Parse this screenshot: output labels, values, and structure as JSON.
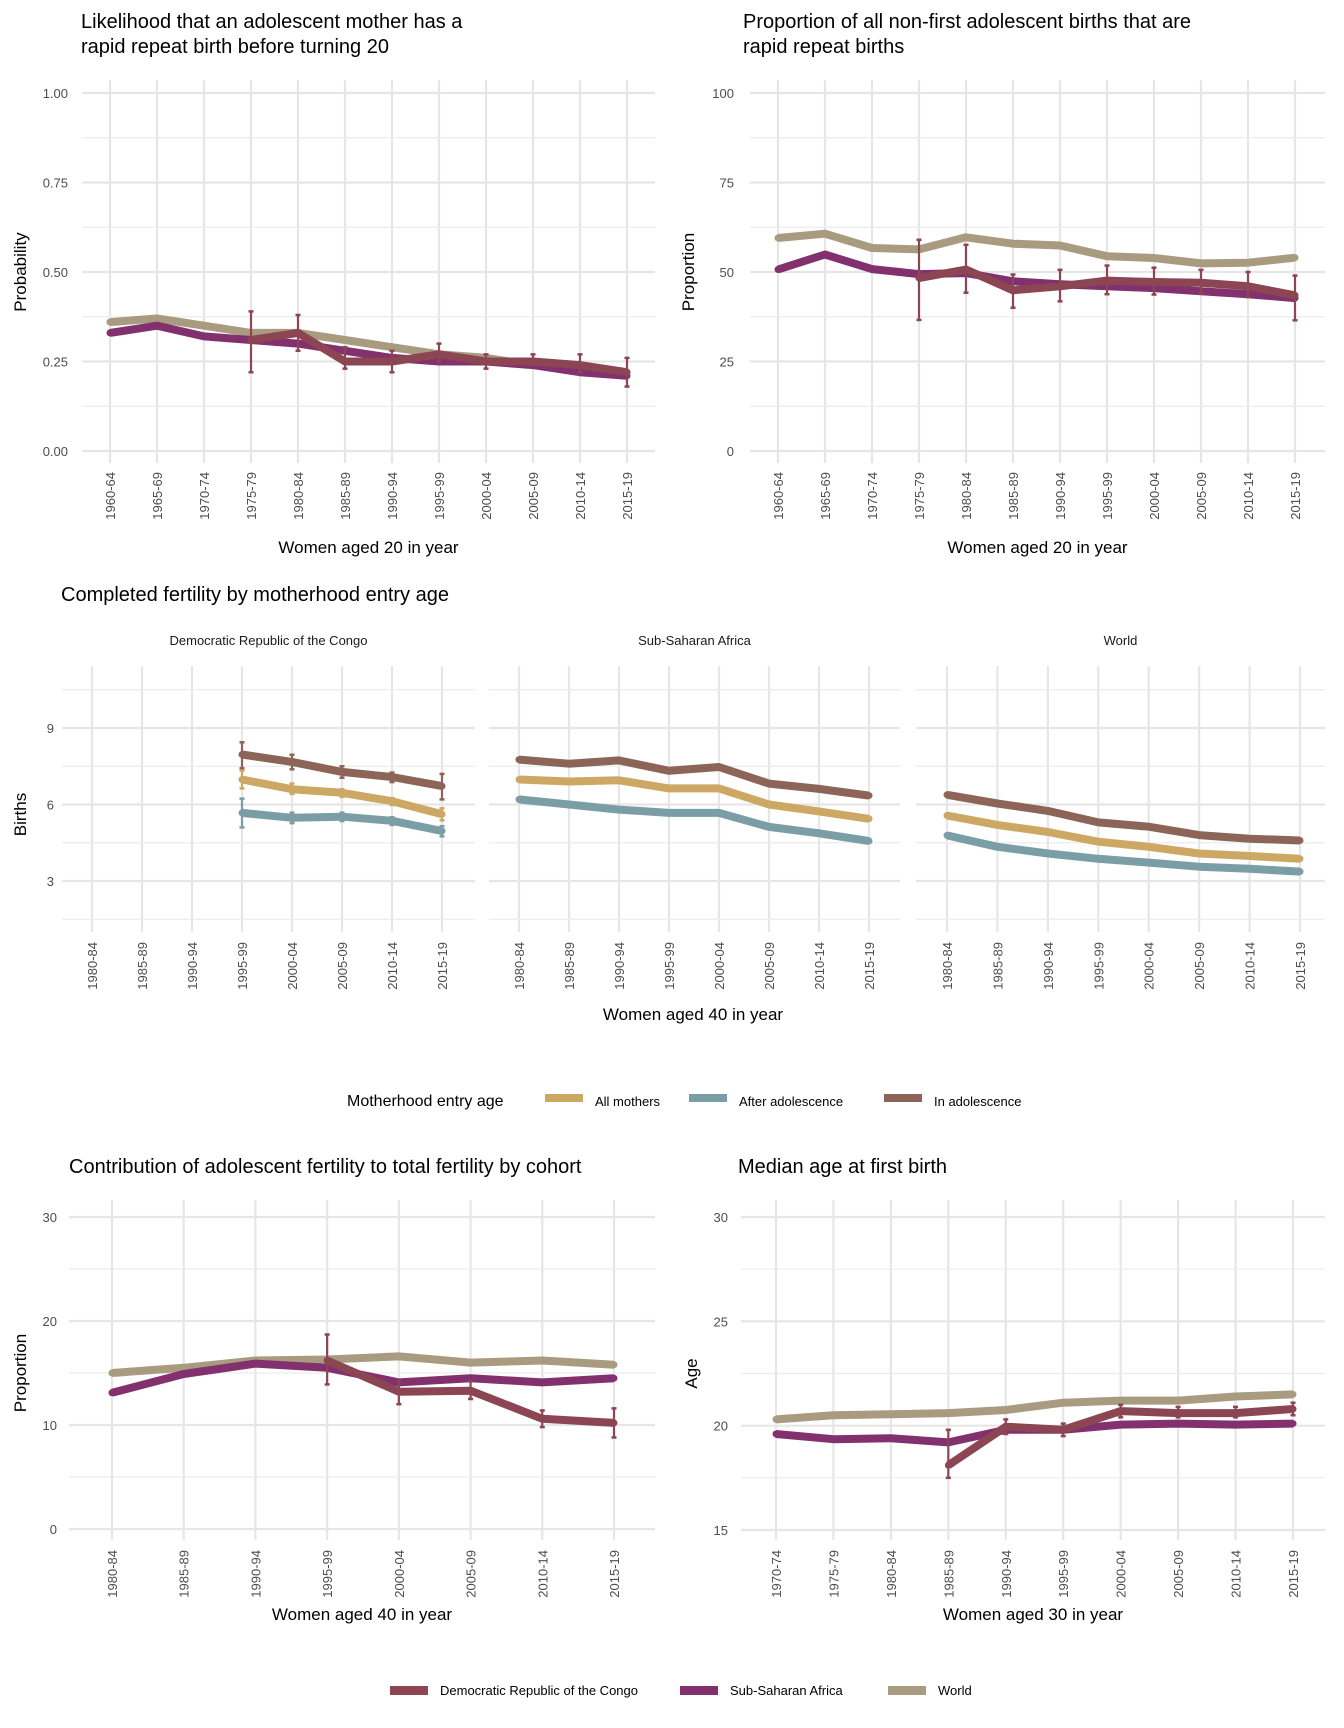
{
  "colors": {
    "drc": "#8b4553",
    "ssa": "#83306f",
    "world": "#a89b80",
    "all_mothers": "#cda864",
    "after_adolescence": "#7b9ea6",
    "in_adolescence": "#8c6558"
  },
  "chart_data": [
    {
      "id": "rapid-repeat-likelihood",
      "type": "line",
      "title": [
        "Likelihood that an adolescent mother has a",
        "rapid repeat birth before turning 20"
      ],
      "xlabel": "Women aged 20 in year",
      "ylabel": "Probability",
      "ylim": [
        0,
        1
      ],
      "yticks": [
        0,
        0.25,
        0.5,
        0.75,
        1
      ],
      "ytick_labels": [
        "0.00",
        "0.25",
        "0.50",
        "0.75",
        "1.00"
      ],
      "grid": true,
      "categories": [
        "1960-64",
        "1965-69",
        "1970-74",
        "1975-79",
        "1980-84",
        "1985-89",
        "1990-94",
        "1995-99",
        "2000-04",
        "2005-09",
        "2010-14",
        "2015-19"
      ],
      "series": [
        {
          "name": "World",
          "color_key": "world",
          "values": [
            0.36,
            0.37,
            0.35,
            0.33,
            0.33,
            0.31,
            0.29,
            0.27,
            0.26,
            0.24,
            0.23,
            0.22
          ]
        },
        {
          "name": "Sub-Saharan Africa",
          "color_key": "ssa",
          "values": [
            0.33,
            0.35,
            0.32,
            0.31,
            0.3,
            0.28,
            0.26,
            0.25,
            0.25,
            0.24,
            0.22,
            0.21
          ]
        },
        {
          "name": "Democratic Republic of the Congo",
          "color_key": "drc",
          "values": [
            null,
            null,
            null,
            0.31,
            0.33,
            0.25,
            0.25,
            0.27,
            0.25,
            0.25,
            0.24,
            0.22
          ],
          "lower": [
            null,
            null,
            null,
            0.22,
            0.28,
            0.23,
            0.22,
            0.25,
            0.23,
            0.24,
            0.22,
            0.18
          ],
          "upper": [
            null,
            null,
            null,
            0.39,
            0.38,
            0.29,
            0.28,
            0.3,
            0.27,
            0.27,
            0.27,
            0.26
          ]
        }
      ]
    },
    {
      "id": "rapid-repeat-proportion",
      "type": "line",
      "title": [
        "Proportion of all non-first adolescent births that are",
        "rapid repeat births"
      ],
      "xlabel": "Women aged 20 in year",
      "ylabel": "Proportion",
      "ylim": [
        0,
        100
      ],
      "yticks": [
        0,
        25,
        50,
        75,
        100
      ],
      "ytick_labels": [
        "0",
        "25",
        "50",
        "75",
        "100"
      ],
      "grid": true,
      "categories": [
        "1960-64",
        "1965-69",
        "1970-74",
        "1975-79",
        "1980-84",
        "1985-89",
        "1990-94",
        "1995-99",
        "2000-04",
        "2005-09",
        "2010-14",
        "2015-19"
      ],
      "series": [
        {
          "name": "World",
          "color_key": "world",
          "values": [
            59.5,
            60.7,
            56.7,
            56.3,
            59.7,
            57.9,
            57.4,
            54.4,
            53.9,
            52.4,
            52.6,
            54.0
          ]
        },
        {
          "name": "Sub-Saharan Africa",
          "color_key": "ssa",
          "values": [
            50.7,
            54.9,
            50.8,
            49.4,
            49.7,
            47.4,
            46.6,
            46.0,
            45.5,
            44.6,
            43.8,
            42.7
          ]
        },
        {
          "name": "Democratic Republic of the Congo",
          "color_key": "drc",
          "values": [
            null,
            null,
            null,
            48.3,
            50.7,
            44.9,
            46.0,
            47.6,
            47.2,
            47.0,
            46.0,
            43.5
          ],
          "lower": [
            null,
            null,
            null,
            36.6,
            44.2,
            40.0,
            41.8,
            43.8,
            43.7,
            44.0,
            43.0,
            36.5
          ],
          "upper": [
            null,
            null,
            null,
            59.0,
            57.6,
            49.3,
            50.6,
            51.8,
            51.2,
            50.6,
            50.0,
            49.0
          ]
        }
      ]
    },
    {
      "id": "completed-fertility",
      "type": "line",
      "title": [
        "Completed fertility by motherhood entry age"
      ],
      "xlabel": "Women aged 40 in year",
      "ylabel": "Births",
      "ylim": [
        0.9,
        11.1
      ],
      "yticks": [
        3,
        6,
        9
      ],
      "ytick_labels": [
        "3",
        "6",
        "9"
      ],
      "minor_yticks": [
        1.5,
        4.5,
        7.5,
        10.5
      ],
      "grid": true,
      "categories": [
        "1980-84",
        "1985-89",
        "1990-94",
        "1995-99",
        "2000-04",
        "2005-09",
        "2010-14",
        "2015-19"
      ],
      "legend": {
        "title": "Motherhood entry age",
        "position": "bottom",
        "items": [
          {
            "label": "All mothers",
            "color_key": "all_mothers"
          },
          {
            "label": "After adolescence",
            "color_key": "after_adolescence"
          },
          {
            "label": "In adolescence",
            "color_key": "in_adolescence"
          }
        ]
      },
      "facets": [
        {
          "name": "Democratic Republic of the Congo",
          "series": [
            {
              "name": "In adolescence",
              "color_key": "in_adolescence",
              "values": [
                null,
                null,
                null,
                7.96,
                7.67,
                7.28,
                7.08,
                6.72
              ],
              "lower": [
                null,
                null,
                null,
                7.42,
                7.38,
                7.05,
                6.88,
                6.2
              ],
              "upper": [
                null,
                null,
                null,
                8.44,
                7.95,
                7.5,
                7.25,
                7.2
              ]
            },
            {
              "name": "All mothers",
              "color_key": "all_mothers",
              "values": [
                null,
                null,
                null,
                6.98,
                6.6,
                6.46,
                6.13,
                5.62
              ],
              "lower": [
                null,
                null,
                null,
                6.63,
                6.42,
                6.3,
                5.98,
                5.38
              ],
              "upper": [
                null,
                null,
                null,
                7.33,
                6.82,
                6.6,
                6.25,
                5.85
              ]
            },
            {
              "name": "After adolescence",
              "color_key": "after_adolescence",
              "values": [
                null,
                null,
                null,
                5.67,
                5.48,
                5.52,
                5.36,
                4.96
              ],
              "lower": [
                null,
                null,
                null,
                5.1,
                5.27,
                5.35,
                5.2,
                4.75
              ],
              "upper": [
                null,
                null,
                null,
                6.23,
                5.68,
                5.68,
                5.5,
                5.15
              ]
            }
          ]
        },
        {
          "name": "Sub-Saharan Africa",
          "series": [
            {
              "name": "In adolescence",
              "color_key": "in_adolescence",
              "values": [
                7.76,
                7.6,
                7.73,
                7.32,
                7.47,
                6.82,
                6.61,
                6.35
              ]
            },
            {
              "name": "All mothers",
              "color_key": "all_mothers",
              "values": [
                6.98,
                6.9,
                6.95,
                6.63,
                6.63,
                6.0,
                5.73,
                5.44
              ]
            },
            {
              "name": "After adolescence",
              "color_key": "after_adolescence",
              "values": [
                6.2,
                6.0,
                5.8,
                5.67,
                5.67,
                5.12,
                4.87,
                4.57
              ]
            }
          ]
        },
        {
          "name": "World",
          "series": [
            {
              "name": "In adolescence",
              "color_key": "in_adolescence",
              "values": [
                6.38,
                6.04,
                5.75,
                5.3,
                5.13,
                4.8,
                4.66,
                4.59
              ]
            },
            {
              "name": "All mothers",
              "color_key": "all_mothers",
              "values": [
                5.57,
                5.2,
                4.92,
                4.54,
                4.34,
                4.08,
                3.98,
                3.87
              ]
            },
            {
              "name": "After adolescence",
              "color_key": "after_adolescence",
              "values": [
                4.79,
                4.34,
                4.08,
                3.87,
                3.72,
                3.56,
                3.48,
                3.37
              ]
            }
          ]
        }
      ]
    },
    {
      "id": "adolescent-contribution",
      "type": "line",
      "title": [
        "Contribution of adolescent fertility to total fertility by cohort"
      ],
      "xlabel": "Women aged 40 in year",
      "ylabel": "Proportion",
      "ylim": [
        0,
        30
      ],
      "yticks": [
        0,
        10,
        20,
        30
      ],
      "ytick_labels": [
        "0",
        "10",
        "20",
        "30"
      ],
      "minor_yticks": [
        5,
        15,
        25
      ],
      "grid": true,
      "categories": [
        "1980-84",
        "1985-89",
        "1990-94",
        "1995-99",
        "2000-04",
        "2005-09",
        "2010-14",
        "2015-19"
      ],
      "series": [
        {
          "name": "World",
          "color_key": "world",
          "values": [
            15.0,
            15.5,
            16.2,
            16.3,
            16.6,
            16.0,
            16.2,
            15.8
          ]
        },
        {
          "name": "Sub-Saharan Africa",
          "color_key": "ssa",
          "values": [
            13.1,
            14.9,
            15.9,
            15.5,
            14.1,
            14.5,
            14.1,
            14.5
          ]
        },
        {
          "name": "Democratic Republic of the Congo",
          "color_key": "drc",
          "values": [
            null,
            null,
            null,
            16.2,
            13.2,
            13.3,
            10.6,
            10.2
          ],
          "lower": [
            null,
            null,
            null,
            13.9,
            12.0,
            12.5,
            9.8,
            8.8
          ],
          "upper": [
            null,
            null,
            null,
            18.7,
            14.2,
            14.2,
            11.4,
            11.6
          ]
        }
      ]
    },
    {
      "id": "median-age-first-birth",
      "type": "line",
      "title": [
        "Median age at first birth"
      ],
      "xlabel": "Women aged 30 in year",
      "ylabel": "Age",
      "ylim": [
        15,
        30
      ],
      "yticks": [
        15,
        20,
        25,
        30
      ],
      "ytick_labels": [
        "15",
        "20",
        "25",
        "30"
      ],
      "minor_yticks": [
        17.5,
        22.5,
        27.5
      ],
      "grid": true,
      "categories": [
        "1970-74",
        "1975-79",
        "1980-84",
        "1985-89",
        "1990-94",
        "1995-99",
        "2000-04",
        "2005-09",
        "2010-14",
        "2015-19"
      ],
      "series": [
        {
          "name": "World",
          "color_key": "world",
          "values": [
            20.3,
            20.5,
            20.55,
            20.6,
            20.75,
            21.1,
            21.2,
            21.2,
            21.4,
            21.5
          ]
        },
        {
          "name": "Sub-Saharan Africa",
          "color_key": "ssa",
          "values": [
            19.6,
            19.35,
            19.4,
            19.2,
            19.8,
            19.8,
            20.05,
            20.1,
            20.05,
            20.1
          ]
        },
        {
          "name": "Democratic Republic of the Congo",
          "color_key": "drc",
          "values": [
            null,
            null,
            null,
            18.1,
            19.95,
            19.8,
            20.7,
            20.6,
            20.6,
            20.8
          ],
          "lower": [
            null,
            null,
            null,
            17.5,
            19.6,
            19.5,
            20.4,
            20.4,
            20.4,
            20.5
          ],
          "upper": [
            null,
            null,
            null,
            19.8,
            20.3,
            20.1,
            21.0,
            20.9,
            20.9,
            21.1
          ]
        }
      ]
    }
  ],
  "legends": {
    "entry_age": {
      "title": "Motherhood entry age",
      "items": [
        "All mothers",
        "After adolescence",
        "In adolescence"
      ]
    },
    "region": {
      "items": [
        "Democratic Republic of the Congo",
        "Sub-Saharan Africa",
        "World"
      ]
    }
  }
}
